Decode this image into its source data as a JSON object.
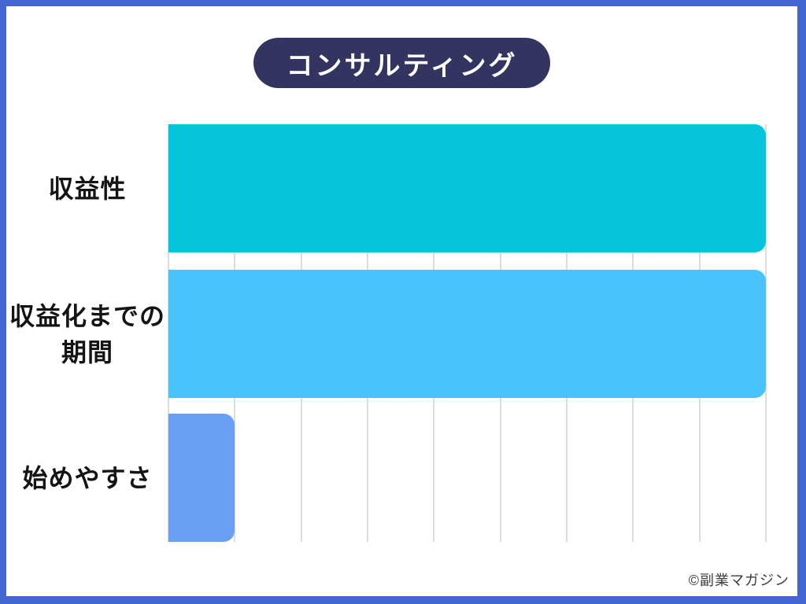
{
  "frame": {
    "border_color": "#4365D2",
    "background": "#ffffff"
  },
  "title": {
    "text": "コンサルティング",
    "bg_color": "#343461",
    "text_color": "#ffffff"
  },
  "chart_data": {
    "type": "bar",
    "orientation": "horizontal",
    "title": "コンサルティング",
    "categories": [
      "収益性",
      "収益化までの期間",
      "始めやすさ"
    ],
    "category_lines": [
      [
        "収益性"
      ],
      [
        "収益化までの",
        "期間"
      ],
      [
        "始めやすさ"
      ]
    ],
    "values": [
      9,
      9,
      1
    ],
    "xlim": [
      0,
      9
    ],
    "gridline_interval": 1,
    "grid": true,
    "legend": false,
    "xlabel": "",
    "ylabel": "",
    "bar_colors": [
      "#04C5DB",
      "#4AC3FC",
      "#689FF2"
    ],
    "gridline_color": "#dcdcdc",
    "label_color": "#141414"
  },
  "footer": {
    "copyright": "©副業マガジン",
    "color": "#3d3d3d"
  }
}
